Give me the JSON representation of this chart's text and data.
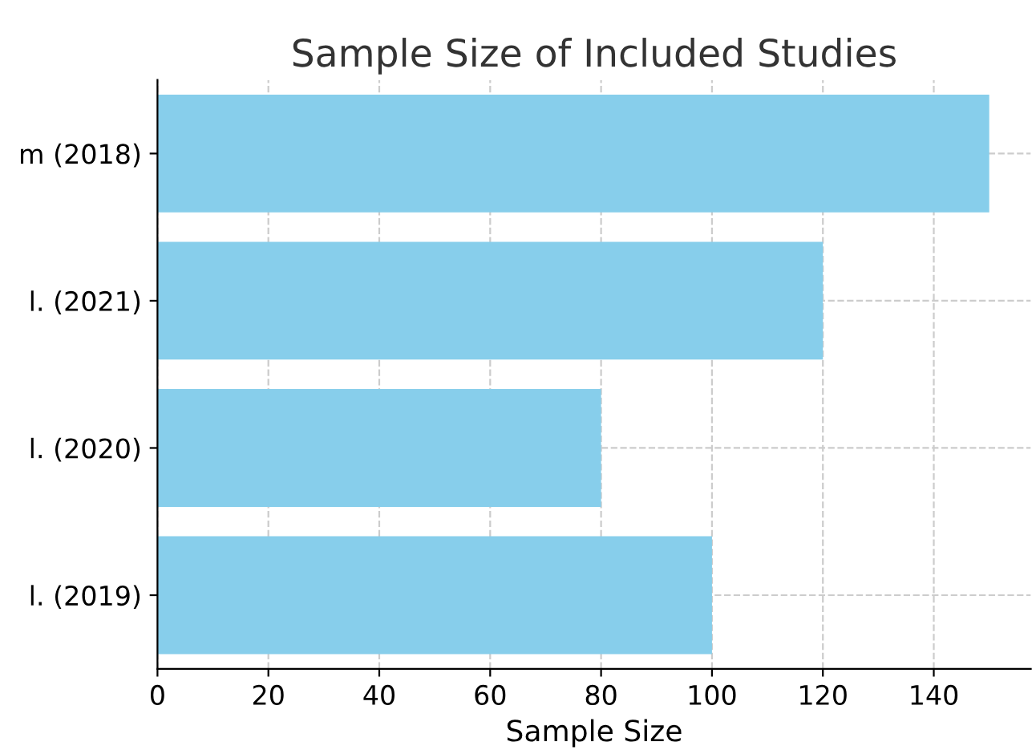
{
  "chart_data": {
    "type": "bar",
    "orientation": "horizontal",
    "title": "Sample Size of Included Studies",
    "xlabel": "Sample Size",
    "categories": [
      "m (2018)",
      "l. (2021)",
      "l. (2020)",
      "l. (2019)"
    ],
    "values": [
      150,
      120,
      80,
      100
    ],
    "color": "#87ceeb",
    "xlim": [
      0,
      157.5
    ],
    "xticks": [
      0,
      20,
      40,
      60,
      80,
      100,
      120,
      140
    ],
    "grid": true
  }
}
